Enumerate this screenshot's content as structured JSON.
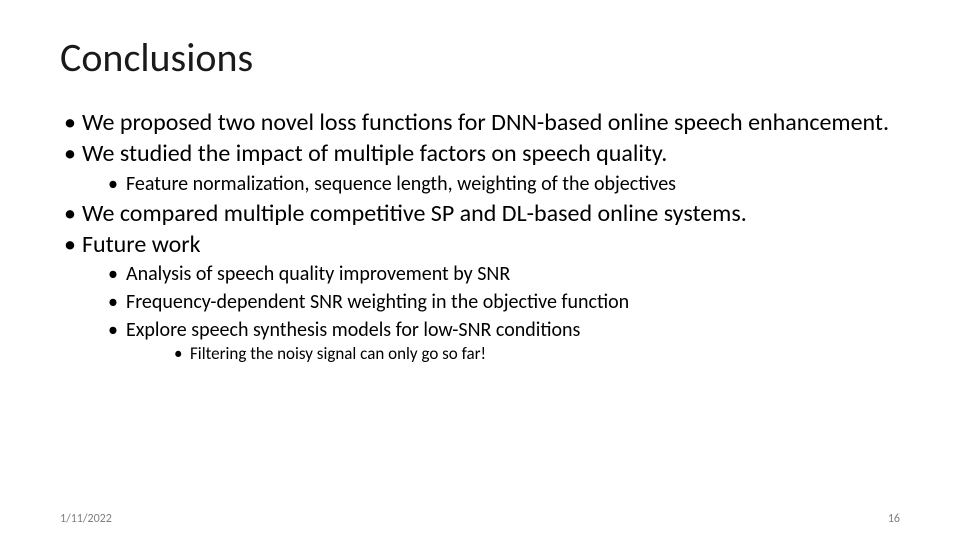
{
  "title": "Conclusions",
  "bullets": {
    "b1": "We proposed two novel loss functions for DNN-based online speech enhancement.",
    "b2": "We studied the impact of multiple factors on speech quality.",
    "b2_sub1": "Feature normalization, sequence length, weighting of the objectives",
    "b3": "We compared multiple competitive SP and DL-based online systems.",
    "b4": "Future work",
    "b4_sub1": "Analysis of speech quality improvement by SNR",
    "b4_sub2": "Frequency-dependent SNR weighting in the objective function",
    "b4_sub3": "Explore speech synthesis models for low-SNR conditions",
    "b4_sub3_sub1": "Filtering the noisy signal can only go so far!"
  },
  "footer": {
    "date": "1/11/2022",
    "page": "16"
  },
  "style": {
    "background_color": "#ffffff",
    "title_color": "#1a1a1a",
    "text_color": "#000000",
    "footer_color": "#7f7f7f",
    "title_fontsize": 40,
    "lvl1_fontsize": 24,
    "lvl2_fontsize": 20,
    "lvl3_fontsize": 17,
    "footer_fontsize": 12
  }
}
